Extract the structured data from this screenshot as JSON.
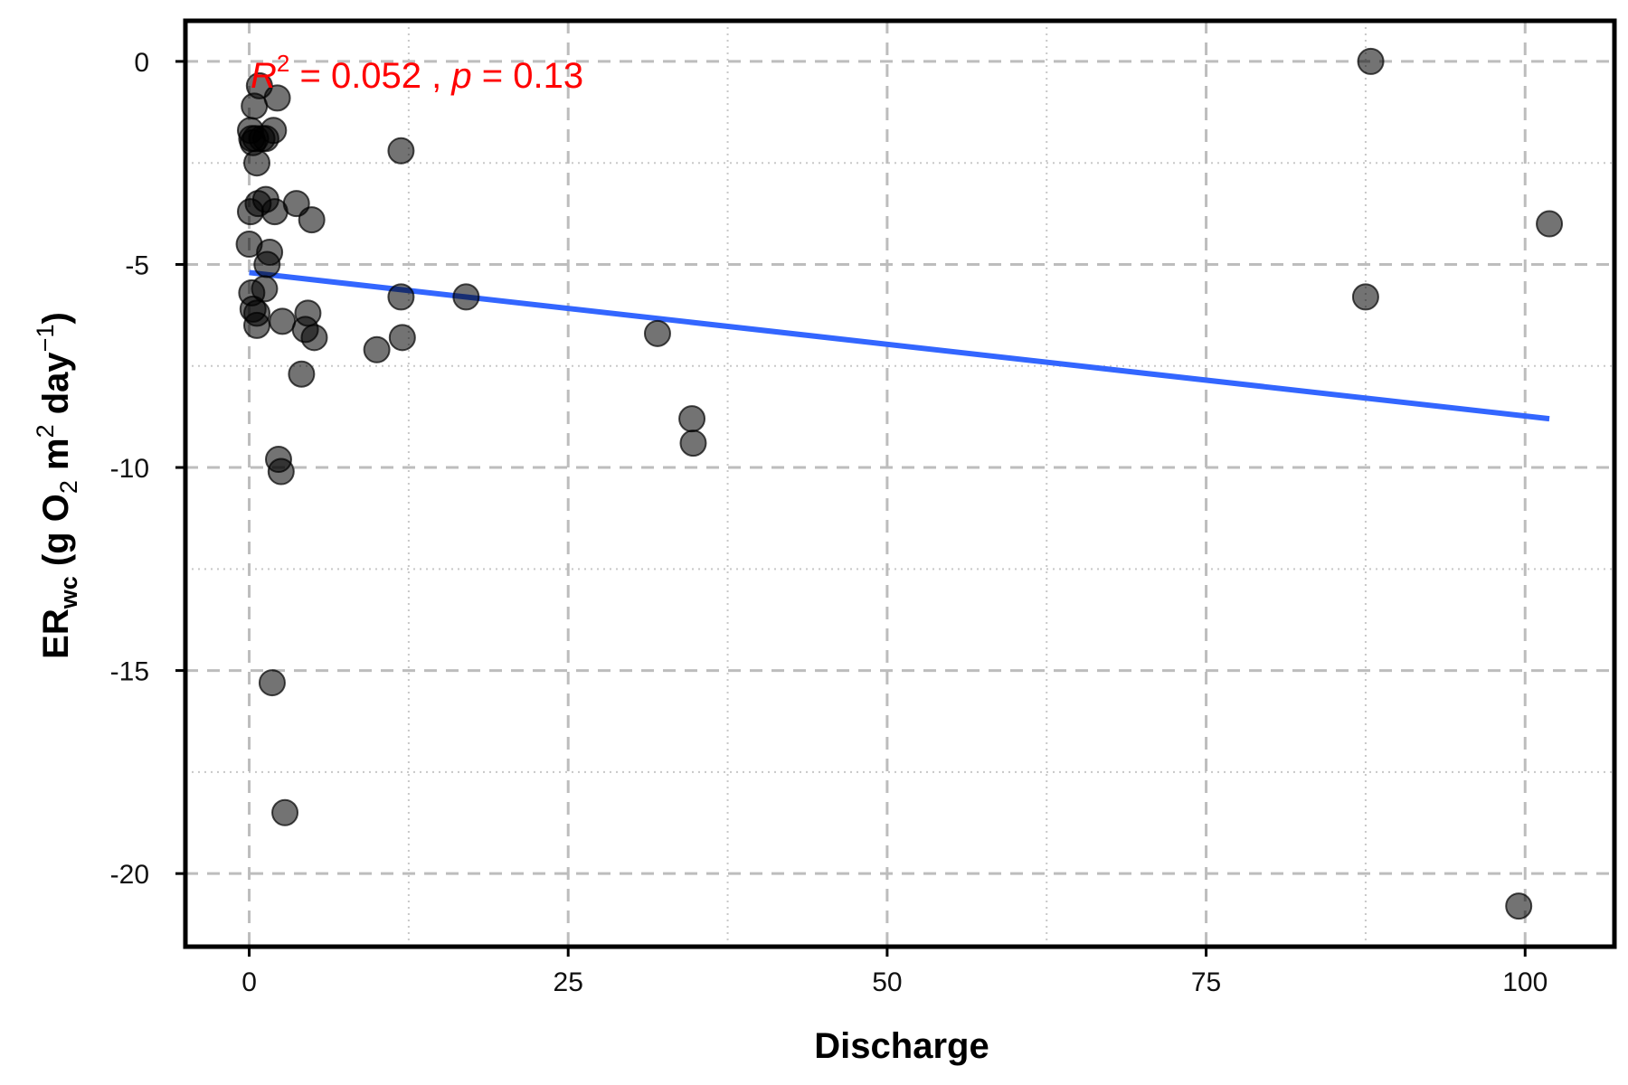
{
  "chart_data": {
    "type": "scatter",
    "xlabel": "Discharge",
    "ylabel": {
      "main": "ER",
      "main_sub": "wc",
      "open": " (g O",
      "o_sub": "2",
      "m": " m",
      "m_sup": "2",
      "day": " day",
      "day_sup": "−1",
      "close": ")"
    },
    "xlim": [
      -5,
      107
    ],
    "ylim": [
      -21.8,
      1.0
    ],
    "x_ticks": [
      0,
      25,
      50,
      75,
      100
    ],
    "y_ticks": [
      0,
      -5,
      -10,
      -15,
      -20
    ],
    "x_tick_labels": [
      "0",
      "25",
      "50",
      "75",
      "100"
    ],
    "y_tick_labels": [
      "0",
      "-5",
      "-10",
      "-15",
      "-20"
    ],
    "x_minor_ticks": [
      12.5,
      37.5,
      62.5,
      87.5
    ],
    "y_minor_ticks": [
      -2.5,
      -7.5,
      -12.5,
      -17.5
    ],
    "grid": true,
    "annotation": {
      "r_label": "R",
      "r_sup": "2",
      "r_rest": " = 0.052 , ",
      "p_label": "p",
      "p_rest": " = 0.13",
      "color": "#ff0000"
    },
    "series": [
      {
        "x": [
          0.8,
          2.2,
          0.4,
          0.1,
          0.2,
          1.0,
          0.5,
          1.3,
          1.9,
          0.3,
          0.6,
          11.9,
          0.1,
          1.3,
          0.7,
          2.0,
          3.7,
          4.9,
          0.0,
          1.6,
          1.4,
          0.2,
          1.2,
          0.3,
          0.6,
          4.6,
          0.6,
          2.6,
          4.4,
          5.1,
          11.9,
          12.0,
          17.0,
          10.0,
          32.0,
          4.1,
          34.7,
          34.8,
          2.3,
          2.5,
          1.8,
          2.8,
          87.9,
          87.5,
          101.9,
          99.5
        ],
        "y": [
          -0.6,
          -0.9,
          -1.1,
          -1.7,
          -1.9,
          -1.9,
          -1.9,
          -1.9,
          -1.7,
          -2.0,
          -2.5,
          -2.2,
          -3.7,
          -3.4,
          -3.5,
          -3.7,
          -3.5,
          -3.9,
          -4.5,
          -4.7,
          -5.0,
          -5.7,
          -5.6,
          -6.1,
          -6.2,
          -6.2,
          -6.5,
          -6.4,
          -6.6,
          -6.8,
          -5.8,
          -6.8,
          -5.8,
          -7.1,
          -6.7,
          -7.7,
          -8.8,
          -9.4,
          -9.8,
          -10.1,
          -15.3,
          -18.5,
          0.0,
          -5.8,
          -4.0,
          -20.8
        ],
        "color": "#000000",
        "opacity": 0.55
      }
    ],
    "trend_line": {
      "x": [
        0.0,
        101.9
      ],
      "y": [
        -5.2,
        -8.8
      ],
      "color": "#3366ff"
    },
    "colors": {
      "major_grid": "#bdbdbd",
      "minor_grid": "#c8c8c8",
      "axis": "#000000"
    }
  }
}
